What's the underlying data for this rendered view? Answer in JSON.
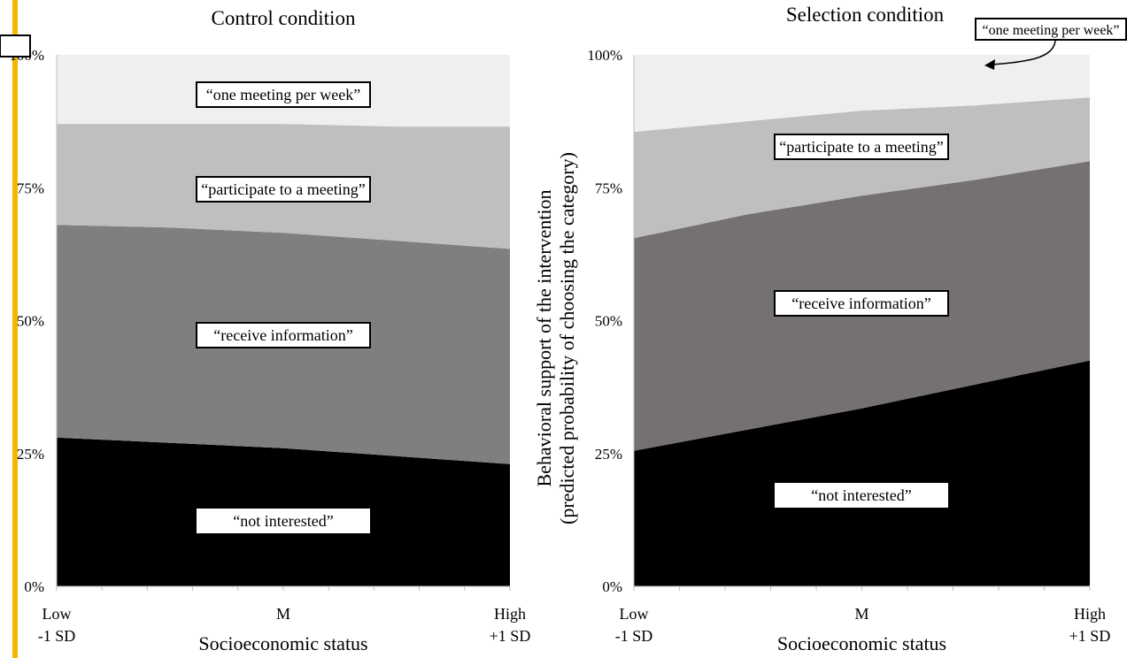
{
  "colors": {
    "not_interested": "#000000",
    "receive_information": "#7f7f7f",
    "receive_information_selection": "#767171",
    "participate": "#bfbfbf",
    "one_meeting": "#efefef",
    "accent_bar": "#f5b800"
  },
  "chart_data": [
    {
      "type": "area",
      "stacked": true,
      "title": "Control condition",
      "xlabel": "Socioeconomic status",
      "ylabel": "",
      "x_tick_labels": [
        {
          "line1": "Low",
          "line2": "-1 SD"
        },
        {
          "line1": "M",
          "line2": ""
        },
        {
          "line1": "High",
          "line2": "+1 SD"
        }
      ],
      "y_tick_labels": [
        "0%",
        "25%",
        "50%",
        "75%",
        "100%"
      ],
      "ylim": [
        0,
        100
      ],
      "x": [
        -1,
        -0.5,
        0,
        0.5,
        1
      ],
      "series": [
        {
          "name": "“not interested”",
          "values": [
            28,
            27,
            26,
            24.5,
            23
          ]
        },
        {
          "name": "“receive information”",
          "values": [
            40,
            40.5,
            40.5,
            40.5,
            40.5
          ]
        },
        {
          "name": "“participate to a meeting”",
          "values": [
            19,
            19.5,
            20.5,
            21.5,
            23
          ]
        },
        {
          "name": "“one meeting per week”",
          "values": [
            13,
            13,
            13,
            13.5,
            13.5
          ]
        }
      ],
      "grid": false
    },
    {
      "type": "area",
      "stacked": true,
      "title": "Selection condition",
      "xlabel": "Socioeconomic status",
      "ylabel": "Behavioral support of the intervention (predicted probability of choosing the category)",
      "x_tick_labels": [
        {
          "line1": "Low",
          "line2": "-1 SD"
        },
        {
          "line1": "M",
          "line2": ""
        },
        {
          "line1": "High",
          "line2": "+1 SD"
        }
      ],
      "y_tick_labels": [
        "0%",
        "25%",
        "50%",
        "75%",
        "100%"
      ],
      "ylim": [
        0,
        100
      ],
      "x": [
        -1,
        -0.5,
        0,
        0.5,
        1
      ],
      "series": [
        {
          "name": "“not interested”",
          "values": [
            25.5,
            29.5,
            33.5,
            38,
            42.5
          ]
        },
        {
          "name": "“receive information”",
          "values": [
            40,
            40.5,
            40,
            38.5,
            37.5
          ]
        },
        {
          "name": "“participate to a meeting”",
          "values": [
            20,
            17.5,
            16,
            14,
            12
          ]
        },
        {
          "name": "“one meeting per week”",
          "values": [
            14.5,
            12.5,
            10.5,
            9.5,
            8
          ]
        }
      ],
      "grid": false
    }
  ]
}
